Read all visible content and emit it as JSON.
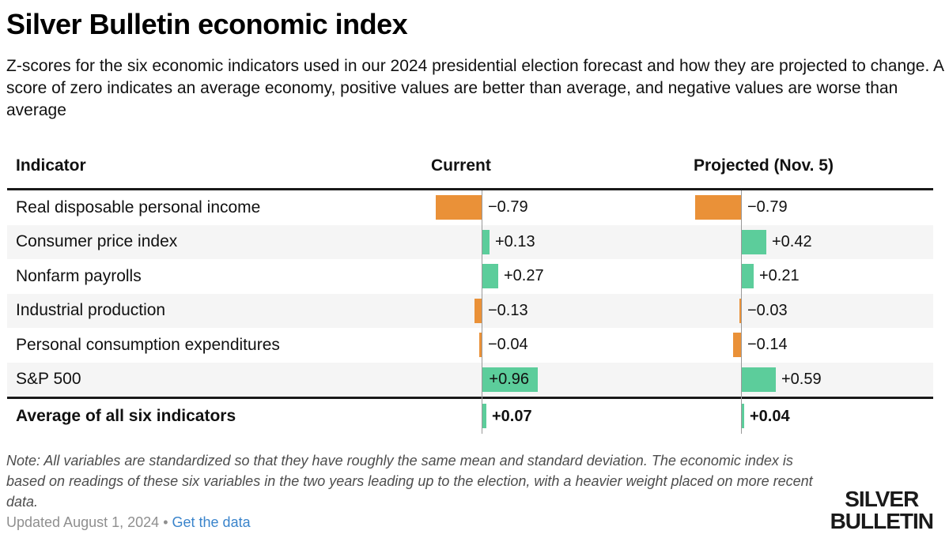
{
  "header": {
    "title": "Silver Bulletin economic index",
    "subtitle": "Z-scores for the six economic indicators used in our 2024 presidential election forecast and how they are projected to change. A score of zero indicates an average economy, positive values are better than average, and negative values are worse than average"
  },
  "table": {
    "columns": [
      "Indicator",
      "Current",
      "Projected (Nov. 5)"
    ],
    "rows": [
      {
        "label": "Real disposable personal income",
        "current": {
          "value": -0.79,
          "display": "−0.79"
        },
        "projected": {
          "value": -0.79,
          "display": "−0.79"
        }
      },
      {
        "label": "Consumer price index",
        "current": {
          "value": 0.13,
          "display": "+0.13"
        },
        "projected": {
          "value": 0.42,
          "display": "+0.42"
        }
      },
      {
        "label": "Nonfarm payrolls",
        "current": {
          "value": 0.27,
          "display": "+0.27"
        },
        "projected": {
          "value": 0.21,
          "display": "+0.21"
        }
      },
      {
        "label": "Industrial production",
        "current": {
          "value": -0.13,
          "display": "−0.13"
        },
        "projected": {
          "value": -0.03,
          "display": "−0.03"
        }
      },
      {
        "label": "Personal consumption expenditures",
        "current": {
          "value": -0.04,
          "display": "−0.04"
        },
        "projected": {
          "value": -0.14,
          "display": "−0.14"
        }
      },
      {
        "label": "S&P 500",
        "current": {
          "value": 0.96,
          "display": "+0.96"
        },
        "projected": {
          "value": 0.59,
          "display": "+0.59"
        }
      }
    ],
    "average_row": {
      "label": "Average of all six indicators",
      "current": {
        "value": 0.07,
        "display": "+0.07"
      },
      "projected": {
        "value": 0.04,
        "display": "+0.04"
      }
    }
  },
  "footer": {
    "note": "Note: All variables are standardized so that they have roughly the same mean and standard deviation. The economic index is based on readings of these six variables in the two years leading up to the election, with a heavier weight placed on more recent data.",
    "updated": "Updated August 1, 2024",
    "separator": "•",
    "link_label": "Get the data"
  },
  "logo": {
    "line1": "SILVER",
    "line2": "BULLETIN"
  },
  "colors": {
    "positive": "#5ccd9b",
    "negative": "#ea9138",
    "link": "#3a84cb",
    "zero_line": "#999999",
    "alt_row": "#f5f5f5",
    "rule": "#1a1a1a"
  },
  "chart_data": {
    "type": "bar",
    "orientation": "horizontal",
    "title": "Silver Bulletin economic index",
    "categories": [
      "Real disposable personal income",
      "Consumer price index",
      "Nonfarm payrolls",
      "Industrial production",
      "Personal consumption expenditures",
      "S&P 500",
      "Average of all six indicators"
    ],
    "series": [
      {
        "name": "Current",
        "values": [
          -0.79,
          0.13,
          0.27,
          -0.13,
          -0.04,
          0.96,
          0.07
        ]
      },
      {
        "name": "Projected (Nov. 5)",
        "values": [
          -0.79,
          0.42,
          0.21,
          -0.03,
          -0.14,
          0.59,
          0.04
        ]
      }
    ],
    "unit": "z-score",
    "baseline": 0,
    "xlim": [
      -1.0,
      1.0
    ],
    "grid": false,
    "legend_position": "column-headers",
    "value_labels": true,
    "positive_color": "#5ccd9b",
    "negative_color": "#ea9138"
  }
}
